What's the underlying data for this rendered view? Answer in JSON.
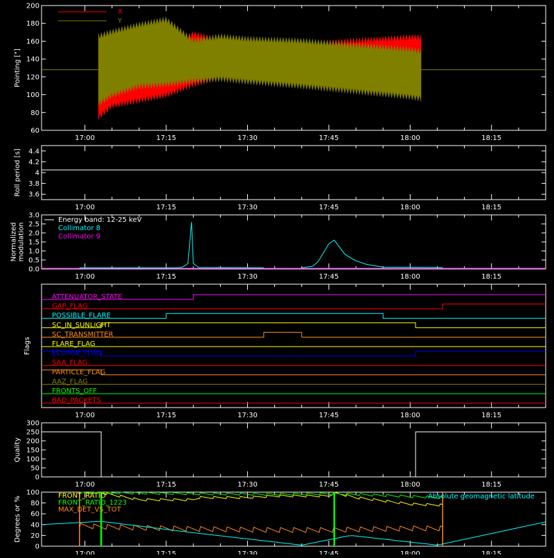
{
  "colors": {
    "background": "#000000",
    "axes": "#ffffff",
    "red": "#ff0000",
    "olive": "#808000",
    "cyan": "#00ffff",
    "magenta": "#ff00ff",
    "yellow": "#ffff00",
    "green": "#00ff00",
    "orange": "#ff8c1a",
    "blue": "#0000ff",
    "white": "#ffffff"
  },
  "time_ticks": [
    "17:00",
    "17:15",
    "17:30",
    "17:45",
    "18:00",
    "18:15"
  ],
  "chart_data": [
    {
      "id": "pointing",
      "type": "area",
      "ylabel": "Pointing [\"]",
      "ylim": [
        60,
        200
      ],
      "yticks": [
        60,
        80,
        100,
        120,
        140,
        160,
        180,
        200
      ],
      "legend": [
        {
          "name": "X",
          "color": "#ff0000"
        },
        {
          "name": "Y",
          "color": "#808000"
        }
      ],
      "reference_line": 128,
      "series": [
        {
          "name": "X",
          "x": [
            "17:02:30",
            "17:05",
            "17:10",
            "17:15",
            "17:20",
            "17:25",
            "17:30",
            "17:40",
            "17:50",
            "18:00",
            "18:02"
          ],
          "upper": [
            150,
            150,
            150,
            150,
            168,
            160,
            152,
            156,
            160,
            164,
            164
          ],
          "lower": [
            75,
            88,
            94,
            100,
            112,
            120,
            122,
            126,
            128,
            132,
            132
          ]
        },
        {
          "name": "Y",
          "x": [
            "17:02:30",
            "17:05",
            "17:10",
            "17:15",
            "17:20",
            "17:25",
            "17:30",
            "17:40",
            "17:50",
            "18:00",
            "18:02"
          ],
          "upper": [
            165,
            170,
            178,
            184,
            160,
            165,
            162,
            160,
            155,
            150,
            148
          ],
          "lower": [
            90,
            100,
            110,
            112,
            116,
            118,
            115,
            110,
            104,
            98,
            96
          ]
        }
      ]
    },
    {
      "id": "roll",
      "type": "line",
      "ylabel": "Roll period [s]",
      "ylim": [
        3.5,
        4.5
      ],
      "yticks": [
        3.6,
        3.8,
        4.0,
        4.2,
        4.4
      ],
      "series": [
        {
          "name": "",
          "x": [
            "16:52",
            "18:25"
          ],
          "y": [
            4.05,
            4.05
          ]
        }
      ]
    },
    {
      "id": "modulation",
      "type": "line",
      "ylabel_lines": [
        "Normalized",
        "modulation"
      ],
      "ylim": [
        0,
        3
      ],
      "yticks": [
        "0.0",
        "0.5",
        "1.0",
        "1.5",
        "2.0",
        "2.5",
        "3.0"
      ],
      "legend": [
        {
          "name": "Energy band: 12-25 keV",
          "color": "#ffffff"
        },
        {
          "name": "Collimator 8",
          "color": "#00ffff"
        },
        {
          "name": "Collimator 9",
          "color": "#ff00ff"
        }
      ],
      "series": [
        {
          "name": "Collimator 8",
          "x": [
            "16:59",
            "17:17",
            "17:18",
            "17:19",
            "17:19:40",
            "17:20",
            "17:21",
            "17:33",
            "17:40",
            "17:42",
            "17:43",
            "17:44",
            "17:45",
            "17:46",
            "17:47",
            "17:48",
            "17:50",
            "17:52",
            "17:55",
            "18:06"
          ],
          "y": [
            0.07,
            0.07,
            0.1,
            0.3,
            2.6,
            0.3,
            0.08,
            0.07,
            0.07,
            0.15,
            0.4,
            0.9,
            1.4,
            1.6,
            1.2,
            0.8,
            0.45,
            0.25,
            0.1,
            0.08
          ]
        },
        {
          "name": "Collimator 9",
          "x": [
            "16:52",
            "18:25"
          ],
          "y": [
            0.0,
            0.0
          ]
        }
      ]
    },
    {
      "id": "flags",
      "type": "line",
      "ylabel": "Flags",
      "series": [
        {
          "name": "ATTENUATOR_STATE",
          "color": "#ff00ff",
          "steps": [
            [
              "16:52",
              0
            ],
            [
              "17:20",
              1
            ],
            [
              "18:25",
              1
            ]
          ]
        },
        {
          "name": "GAP_FLAG",
          "color": "#ff0000",
          "steps": [
            [
              "16:52",
              0
            ],
            [
              "18:06",
              1
            ],
            [
              "18:25",
              1
            ]
          ]
        },
        {
          "name": "POSSIBLE_FLARE",
          "color": "#00ffff",
          "steps": [
            [
              "16:52",
              0
            ],
            [
              "17:15",
              1
            ],
            [
              "17:55",
              0
            ],
            [
              "18:25",
              0
            ]
          ]
        },
        {
          "name": "SC_IN_SUNLIGHT",
          "color": "#ffff00",
          "steps": [
            [
              "16:52",
              0
            ],
            [
              "17:03",
              1
            ],
            [
              "18:01",
              0
            ],
            [
              "18:25",
              0
            ]
          ]
        },
        {
          "name": "SC_TRANSMITTER",
          "color": "#ff8c1a",
          "steps": [
            [
              "16:52",
              0
            ],
            [
              "17:33",
              1
            ],
            [
              "17:40",
              0
            ],
            [
              "18:25",
              0
            ]
          ]
        },
        {
          "name": "FLARE_FLAG",
          "color": "#ffff00",
          "steps": [
            [
              "16:52",
              0
            ],
            [
              "18:25",
              0
            ]
          ]
        },
        {
          "name": "ECLIPSE_FLAG",
          "color": "#0000ff",
          "steps": [
            [
              "16:52",
              1
            ],
            [
              "17:03",
              0
            ],
            [
              "18:01",
              1
            ],
            [
              "18:25",
              1
            ]
          ]
        },
        {
          "name": "SAA_FLAG",
          "color": "#ff0000",
          "steps": [
            [
              "16:52",
              0
            ],
            [
              "18:25",
              0
            ]
          ]
        },
        {
          "name": "PARTICLE_FLAG",
          "color": "#ff8c1a",
          "steps": [
            [
              "16:52",
              1
            ],
            [
              "17:03",
              0
            ],
            [
              "18:06",
              0
            ],
            [
              "18:25",
              0
            ]
          ]
        },
        {
          "name": "AAZ_FLAG",
          "color": "#808000",
          "steps": [
            [
              "16:52",
              0
            ],
            [
              "18:25",
              0
            ]
          ]
        },
        {
          "name": "FRONTS_OFF",
          "color": "#00ff00",
          "steps": [
            [
              "16:52",
              0
            ],
            [
              "18:25",
              0
            ]
          ]
        },
        {
          "name": "BAD_PACKETS",
          "color": "#ff0000",
          "steps": [
            [
              "16:52",
              0
            ],
            [
              "18:25",
              0
            ]
          ]
        }
      ]
    },
    {
      "id": "quality",
      "type": "line",
      "ylabel": "Quality",
      "ylim": [
        0,
        300
      ],
      "yticks": [
        0,
        50,
        100,
        150,
        200,
        250,
        300
      ],
      "series": [
        {
          "name": "",
          "steps": [
            [
              "16:52",
              250
            ],
            [
              "17:03",
              250
            ],
            [
              "17:03",
              0
            ],
            [
              "18:01",
              0
            ],
            [
              "18:01",
              250
            ],
            [
              "18:25",
              250
            ]
          ]
        }
      ]
    },
    {
      "id": "ratios",
      "type": "line",
      "ylabel": "Degrees or %",
      "ylim": [
        0,
        100
      ],
      "yticks": [
        0,
        20,
        40,
        60,
        80,
        100
      ],
      "legend": [
        {
          "name": "FRONT_RATIO",
          "color": "#ffff00"
        },
        {
          "name": "FRONT_RATIO_1223",
          "color": "#00ff00"
        },
        {
          "name": "MAX_DET_VS_TOT",
          "color": "#ff8c1a"
        }
      ],
      "annotation": {
        "text": "Absolute geomagnetic latitude",
        "color": "#00ffff"
      },
      "series": [
        {
          "name": "FRONT_RATIO",
          "x": [
            "16:59",
            "17:03",
            "17:10",
            "17:20",
            "17:21",
            "17:30",
            "17:35",
            "17:45",
            "17:46",
            "17:50",
            "18:00",
            "18:06"
          ],
          "y": [
            99,
            99,
            86,
            86,
            90,
            90,
            93,
            93,
            99,
            90,
            78,
            76
          ]
        },
        {
          "name": "FRONT_RATIO_1223",
          "x": [
            "16:59",
            "17:03",
            "17:20",
            "17:35",
            "17:45",
            "17:50",
            "18:00",
            "18:06"
          ],
          "y": [
            99,
            99,
            97,
            96,
            97,
            96,
            92,
            90
          ]
        },
        {
          "name": "MAX_DET_VS_TOT",
          "x": [
            "16:59",
            "17:03",
            "17:20",
            "17:35",
            "17:45",
            "18:00",
            "18:06"
          ],
          "y": [
            38,
            36,
            32,
            30,
            30,
            33,
            33
          ]
        },
        {
          "name": "Absolute geomagnetic latitude",
          "x": [
            "16:52",
            "17:03",
            "17:20",
            "17:40",
            "17:49",
            "18:05",
            "18:25"
          ],
          "y": [
            40,
            46,
            25,
            2,
            20,
            2,
            45
          ]
        }
      ],
      "vertical_markers": [
        {
          "x": "16:59",
          "color": "#ff8c1a"
        },
        {
          "x": "17:03",
          "color": "#00ff00"
        },
        {
          "x": "17:46",
          "color": "#00ff00"
        },
        {
          "x": "18:06",
          "color": "#ff8c1a"
        }
      ]
    }
  ]
}
